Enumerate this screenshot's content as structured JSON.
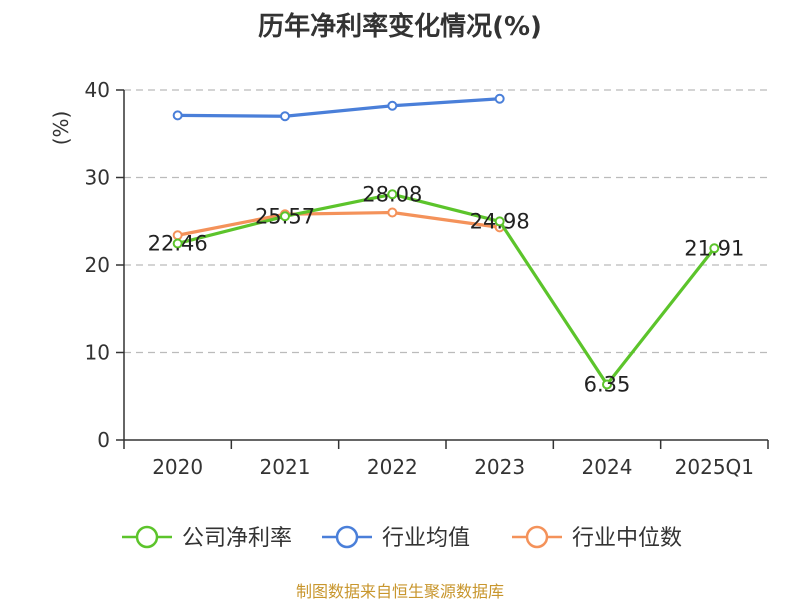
{
  "chart_data": {
    "type": "line",
    "title": "历年净利率变化情况(%)",
    "ylabel": "(%)",
    "xlabel": "",
    "categories": [
      "2020",
      "2021",
      "2022",
      "2023",
      "2024",
      "2025Q1"
    ],
    "ylim": [
      0,
      40
    ],
    "yticks": [
      0,
      10,
      20,
      30,
      40
    ],
    "grid": true,
    "legend_position": "bottom",
    "series": [
      {
        "name": "公司净利率",
        "color": "#5cc42b",
        "values": [
          22.46,
          25.57,
          28.08,
          24.98,
          6.35,
          21.91
        ],
        "labels": [
          "22.46",
          "25.57",
          "28.08",
          "24.98",
          "6.35",
          "21.91"
        ]
      },
      {
        "name": "行业均值",
        "color": "#4a7fd9",
        "values": [
          37.1,
          37.0,
          38.2,
          39.0,
          null,
          null
        ]
      },
      {
        "name": "行业中位数",
        "color": "#f4925a",
        "values": [
          23.4,
          25.8,
          26.0,
          24.3,
          null,
          null
        ]
      }
    ]
  },
  "source": "制图数据来自恒生聚源数据库"
}
